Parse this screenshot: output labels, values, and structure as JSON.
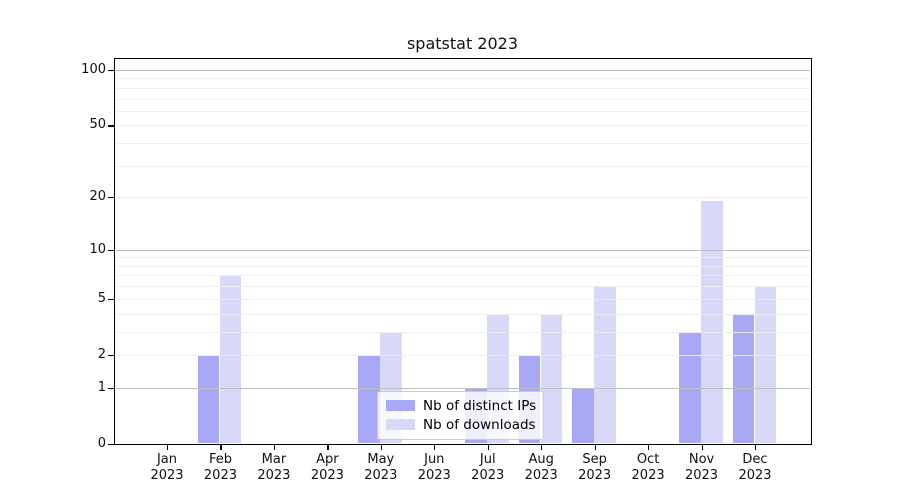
{
  "title": "spatstat 2023",
  "legend": {
    "items": [
      {
        "label": "Nb of distinct IPs",
        "color": "#a8a8f6"
      },
      {
        "label": "Nb of downloads",
        "color": "#d8d8f9"
      }
    ]
  },
  "chart_data": {
    "type": "bar",
    "title": "spatstat 2023",
    "categories": [
      "Jan 2023",
      "Feb 2023",
      "Mar 2023",
      "Apr 2023",
      "May 2023",
      "Jun 2023",
      "Jul 2023",
      "Aug 2023",
      "Sep 2023",
      "Oct 2023",
      "Nov 2023",
      "Dec 2023"
    ],
    "x_tick_months": [
      "Jan",
      "Feb",
      "Mar",
      "Apr",
      "May",
      "Jun",
      "Jul",
      "Aug",
      "Sep",
      "Oct",
      "Nov",
      "Dec"
    ],
    "x_tick_year": "2023",
    "series": [
      {
        "name": "Nb of distinct IPs",
        "color": "#a8a8f6",
        "values": [
          0,
          2,
          0,
          0,
          2,
          0,
          1,
          2,
          1,
          0,
          3,
          4
        ]
      },
      {
        "name": "Nb of downloads",
        "color": "#d8d8f9",
        "values": [
          0,
          7,
          0,
          0,
          3,
          0,
          4,
          4,
          6,
          0,
          19,
          6
        ]
      }
    ],
    "xlabel": "",
    "ylabel": "",
    "yscale": "log1p",
    "ylim": [
      0,
      116
    ],
    "y_tick_values": [
      0,
      1,
      2,
      5,
      10,
      20,
      50,
      100
    ],
    "major_grid_values": [
      1,
      10,
      100
    ],
    "minor_grid_values": [
      2,
      3,
      4,
      5,
      6,
      7,
      8,
      9,
      20,
      30,
      40,
      60,
      70,
      80,
      90
    ],
    "grid": "horizontal",
    "legend_position": "lower center"
  },
  "colors": {
    "background": "#ffffff",
    "axis": "#000000",
    "major_grid": "#bfbfbf",
    "minor_grid": "#ededed"
  }
}
